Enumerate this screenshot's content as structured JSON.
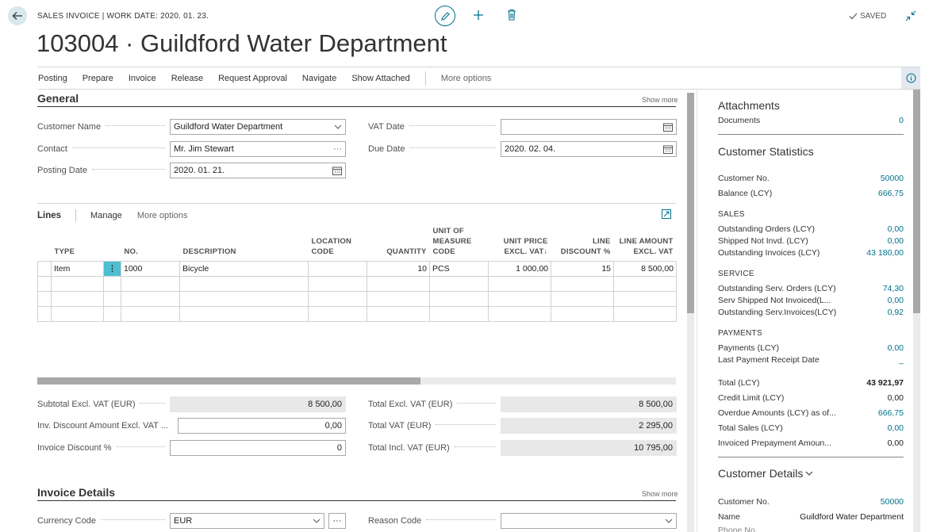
{
  "header": {
    "caption": "SALES INVOICE | WORK DATE: 2020. 01. 23.",
    "title": "103004 · Guildford Water Department",
    "saved": "SAVED"
  },
  "actions": {
    "items": [
      "Posting",
      "Prepare",
      "Invoice",
      "Release",
      "Request Approval",
      "Navigate",
      "Show Attached"
    ],
    "more": "More options"
  },
  "general": {
    "title": "General",
    "show_more": "Show more",
    "customer_name_label": "Customer Name",
    "customer_name": "Guildford Water Department",
    "contact_label": "Contact",
    "contact": "Mr. Jim Stewart",
    "posting_date_label": "Posting Date",
    "posting_date": "2020. 01. 21.",
    "vat_date_label": "VAT Date",
    "vat_date": "",
    "due_date_label": "Due Date",
    "due_date": "2020. 02. 04."
  },
  "lines": {
    "title": "Lines",
    "manage": "Manage",
    "more": "More options",
    "columns": [
      "TYPE",
      "NO.",
      "DESCRIPTION",
      "LOCATION CODE",
      "QUANTITY",
      "UNIT OF MEASURE CODE",
      "UNIT PRICE EXCL. VAT",
      "LINE DISCOUNT %",
      "LINE AMOUNT EXCL. VAT"
    ],
    "rows": [
      {
        "type": "Item",
        "no": "1000",
        "description": "Bicycle",
        "location": "",
        "quantity": "10",
        "uom": "PCS",
        "unit_price": "1 000,00",
        "discount": "15",
        "amount": "8 500,00"
      }
    ],
    "scroll_fraction": 0.6
  },
  "totals": {
    "subtotal_label": "Subtotal Excl. VAT (EUR)",
    "subtotal": "8 500,00",
    "inv_discount_label": "Inv. Discount Amount Excl. VAT ...",
    "inv_discount": "0,00",
    "invoice_discount_pct_label": "Invoice Discount %",
    "invoice_discount_pct": "0",
    "total_excl_label": "Total Excl. VAT (EUR)",
    "total_excl": "8 500,00",
    "total_vat_label": "Total VAT (EUR)",
    "total_vat": "2 295,00",
    "total_incl_label": "Total Incl. VAT (EUR)",
    "total_incl": "10 795,00"
  },
  "invoice_details": {
    "title": "Invoice Details",
    "show_more": "Show more",
    "currency_label": "Currency Code",
    "currency": "EUR",
    "reason_label": "Reason Code",
    "reason": ""
  },
  "factbox": {
    "attachments_title": "Attachments",
    "documents_label": "Documents",
    "documents": "0",
    "stats_title": "Customer Statistics",
    "customer_no_label": "Customer No.",
    "customer_no": "50000",
    "balance_label": "Balance (LCY)",
    "balance": "666,75",
    "sales_group": "SALES",
    "outstanding_orders_label": "Outstanding Orders (LCY)",
    "outstanding_orders": "0,00",
    "shipped_not_invd_label": "Shipped Not Invd. (LCY)",
    "shipped_not_invd": "0,00",
    "outstanding_invoices_label": "Outstanding Invoices (LCY)",
    "outstanding_invoices": "43 180,00",
    "service_group": "SERVICE",
    "serv_orders_label": "Outstanding Serv. Orders (LCY)",
    "serv_orders": "74,30",
    "serv_shipped_label": "Serv Shipped Not Invoiced(L...",
    "serv_shipped": "0,00",
    "serv_invoices_label": "Outstanding Serv.Invoices(LCY)",
    "serv_invoices": "0,92",
    "payments_group": "PAYMENTS",
    "payments_label": "Payments (LCY)",
    "payments": "0,00",
    "last_payment_label": "Last Payment Receipt Date",
    "last_payment": "_",
    "total_label": "Total (LCY)",
    "total": "43 921,97",
    "credit_limit_label": "Credit Limit (LCY)",
    "credit_limit": "0,00",
    "overdue_label": "Overdue Amounts (LCY) as of...",
    "overdue": "666,75",
    "total_sales_label": "Total Sales (LCY)",
    "total_sales": "0,00",
    "prepayment_label": "Invoiced Prepayment Amoun...",
    "prepayment": "0,00",
    "details_title": "Customer Details",
    "details_customer_no_label": "Customer No.",
    "details_customer_no": "50000",
    "name_label": "Name",
    "name": "Guildford Water Department",
    "phone_label": "Phone No."
  },
  "colors": {
    "accent": "#00718c",
    "readonly": "#e8e8e8"
  }
}
